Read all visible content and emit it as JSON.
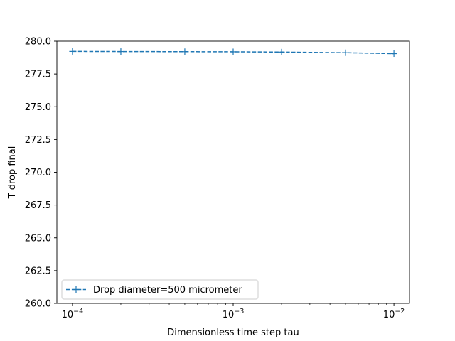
{
  "chart_data": {
    "type": "line",
    "title": "",
    "xlabel": "Dimensionless time step tau",
    "ylabel": "T drop final",
    "xscale": "log",
    "xlim": [
      8e-05,
      0.0125
    ],
    "ylim": [
      260.0,
      280.0
    ],
    "x_ticks": [
      {
        "value": 0.0001,
        "base": "10",
        "exp": "−4"
      },
      {
        "value": 0.001,
        "base": "10",
        "exp": "−3"
      },
      {
        "value": 0.01,
        "base": "10",
        "exp": "−2"
      }
    ],
    "y_ticks": [
      {
        "value": 260.0,
        "label": "260.0"
      },
      {
        "value": 262.5,
        "label": "262.5"
      },
      {
        "value": 265.0,
        "label": "265.0"
      },
      {
        "value": 267.5,
        "label": "267.5"
      },
      {
        "value": 270.0,
        "label": "270.0"
      },
      {
        "value": 272.5,
        "label": "272.5"
      },
      {
        "value": 275.0,
        "label": "275.0"
      },
      {
        "value": 277.5,
        "label": "277.5"
      },
      {
        "value": 280.0,
        "label": "280.0"
      }
    ],
    "grid": false,
    "legend_position": "lower-left",
    "series": [
      {
        "name": "Drop diameter=500 micrometer",
        "color": "#1f77b4",
        "linestyle": "dashed",
        "marker": "plus",
        "x": [
          0.0001,
          0.0002,
          0.0005,
          0.001,
          0.002,
          0.005,
          0.01
        ],
        "y": [
          279.22,
          279.21,
          279.2,
          279.19,
          279.17,
          279.12,
          279.05
        ]
      }
    ]
  }
}
